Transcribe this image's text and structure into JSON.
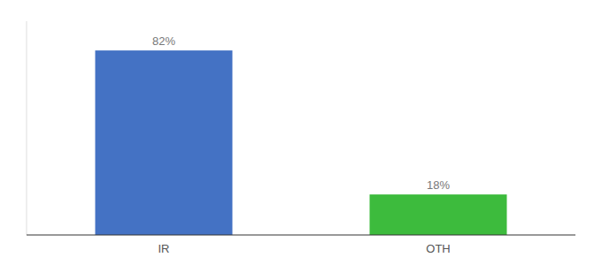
{
  "chart_data": {
    "type": "bar",
    "categories": [
      "IR",
      "OTH"
    ],
    "values": [
      82,
      18
    ],
    "value_labels": [
      "82%",
      "18%"
    ],
    "colors": [
      "#4472c4",
      "#3dbb3d"
    ],
    "ylim": [
      0,
      95
    ],
    "data_labels": true,
    "tick_labels": "x",
    "grid": false
  }
}
